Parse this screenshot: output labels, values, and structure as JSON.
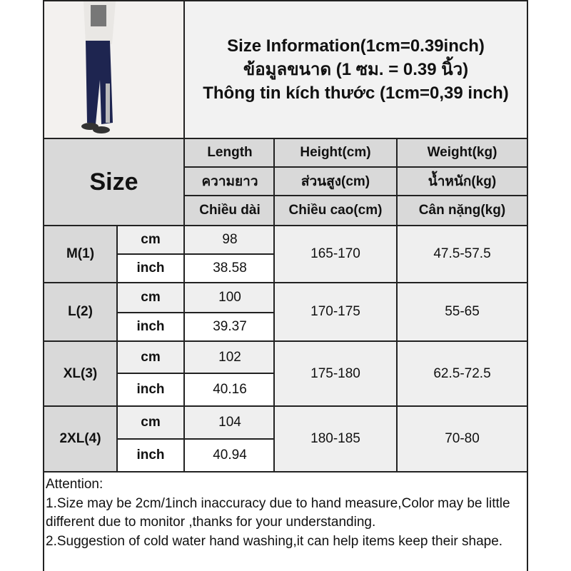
{
  "title": {
    "line1": "Size Information(1cm=0.39inch)",
    "line2": "ข้อมูลขนาด (1 ซม. = 0.39 นิ้ว)",
    "line3": "Thông tin kích thước (1cm=0,39 inch)"
  },
  "header": {
    "size_label": "Size",
    "columns": [
      {
        "en": "Length",
        "th": "ความยาว",
        "vi": "Chiều dài"
      },
      {
        "en": "Height(cm)",
        "th": "ส่วนสูง(cm)",
        "vi": "Chiều cao(cm)"
      },
      {
        "en": "Weight(kg)",
        "th": "น้ำหนัก(kg)",
        "vi": "Cân nặng(kg)"
      }
    ]
  },
  "units": {
    "cm": "cm",
    "inch": "inch"
  },
  "rows": [
    {
      "size": "M(1)",
      "cm": "98",
      "inch": "38.58",
      "height": "165-170",
      "weight": "47.5-57.5"
    },
    {
      "size": "L(2)",
      "cm": "100",
      "inch": "39.37",
      "height": "170-175",
      "weight": "55-65"
    },
    {
      "size": "XL(3)",
      "cm": "102",
      "inch": "40.16",
      "height": "175-180",
      "weight": "62.5-72.5"
    },
    {
      "size": "2XL(4)",
      "cm": "104",
      "inch": "40.94",
      "height": "180-185",
      "weight": "70-80"
    }
  ],
  "attention": {
    "heading": "Attention:",
    "note1": "1.Size may be 2cm/1inch inaccuracy due to hand measure,Color may be little different due to monitor ,thanks for your understanding.",
    "note2": "2.Suggestion of cold water hand washing,it can help items keep their shape."
  },
  "colors": {
    "header_bg": "#d9d9d9",
    "light_bg": "#efefef",
    "pants": "#1e2550"
  }
}
